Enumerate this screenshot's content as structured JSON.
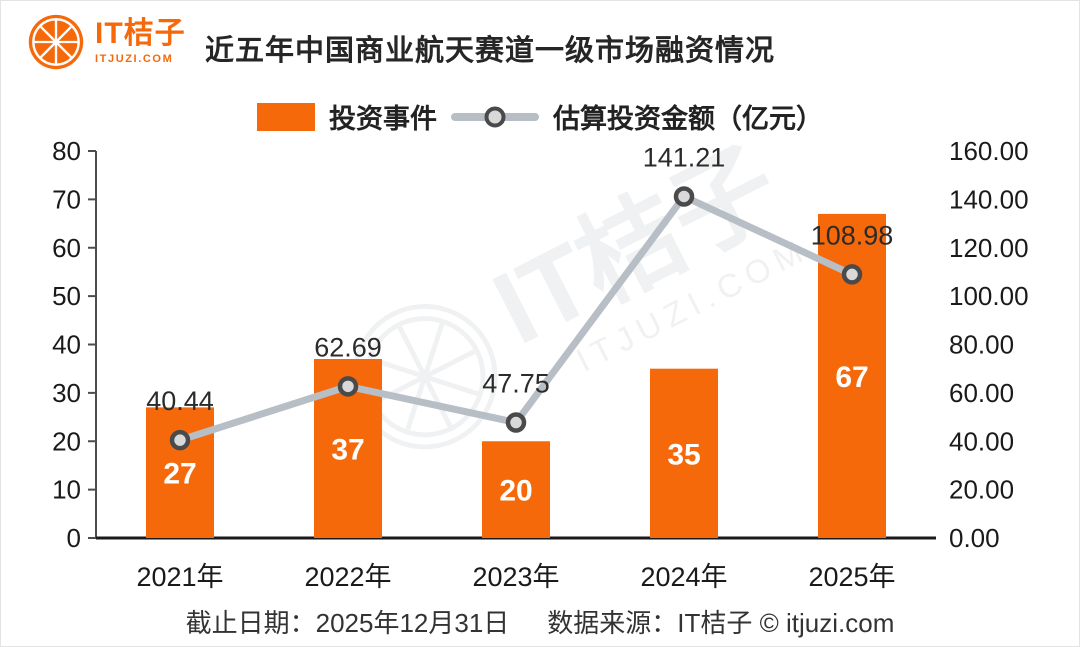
{
  "header": {
    "logo": {
      "text": "IT桔子",
      "domain": "ITJUZI.COM"
    },
    "title": "近五年中国商业航天赛道一级市场融资情况"
  },
  "legend": [
    {
      "type": "bar",
      "label": "投资事件"
    },
    {
      "type": "line",
      "label": "估算投资金额（亿元）"
    }
  ],
  "footer": {
    "cutoff": "截止日期：2025年12月31日",
    "source": "数据来源：IT桔子 © itjuzi.com"
  },
  "watermark": {
    "text": "IT桔子",
    "domain": "ITJUZI.COM"
  },
  "colors": {
    "accent": "#F6690B",
    "line": "#B7BEC6",
    "marker_fill": "#D9D9D9",
    "marker_stroke": "#4A4A4A",
    "axis": "#4D4D4D",
    "baseline": "#1A1A1A",
    "text": "#1A1A1A",
    "value_label": "#2B2B2B"
  },
  "chart_data": {
    "type": "bar",
    "subtype": "bar+line combo with dual y-axes",
    "title": "近五年中国商业航天赛道一级市场融资情况",
    "categories": [
      "2021年",
      "2022年",
      "2023年",
      "2024年",
      "2025年"
    ],
    "series": [
      {
        "name": "投资事件",
        "type": "bar",
        "axis": "left",
        "values": [
          27,
          37,
          20,
          35,
          67
        ]
      },
      {
        "name": "估算投资金额（亿元）",
        "type": "line",
        "axis": "right",
        "values": [
          40.44,
          62.69,
          47.75,
          141.21,
          108.98
        ]
      }
    ],
    "left_axis": {
      "min": 0,
      "max": 80,
      "step": 10
    },
    "right_axis": {
      "min": 0,
      "max": 160,
      "step": 20,
      "decimals": 2
    },
    "grid": false,
    "legend_position": "top"
  }
}
